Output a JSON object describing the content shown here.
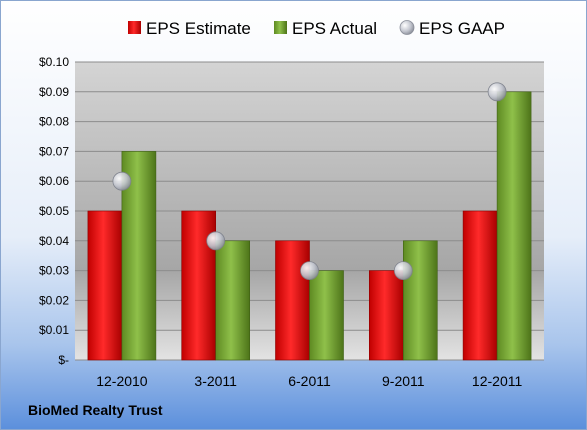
{
  "chart_data": {
    "type": "bar",
    "categories": [
      "12-2010",
      "3-2011",
      "6-2011",
      "9-2011",
      "12-2011"
    ],
    "series": [
      {
        "name": "EPS Estimate",
        "kind": "bar",
        "color": "#cc0000",
        "values": [
          0.05,
          0.05,
          0.04,
          0.03,
          0.05
        ]
      },
      {
        "name": "EPS Actual",
        "kind": "bar",
        "color": "#6e9a2a",
        "values": [
          0.07,
          0.04,
          0.03,
          0.04,
          0.09
        ]
      },
      {
        "name": "EPS GAAP",
        "kind": "marker",
        "color": "#b8bcc8",
        "values": [
          0.06,
          0.04,
          0.03,
          0.03,
          0.09
        ]
      }
    ],
    "ylim": [
      0,
      0.1
    ],
    "yticks": [
      0,
      0.01,
      0.02,
      0.03,
      0.04,
      0.05,
      0.06,
      0.07,
      0.08,
      0.09,
      0.1
    ],
    "ytick_labels": [
      "$-",
      "$0.01",
      "$0.02",
      "$0.03",
      "$0.04",
      "$0.05",
      "$0.06",
      "$0.07",
      "$0.08",
      "$0.09",
      "$0.10"
    ],
    "legend_position": "top",
    "grid": true,
    "footer": "BioMed Realty Trust"
  }
}
